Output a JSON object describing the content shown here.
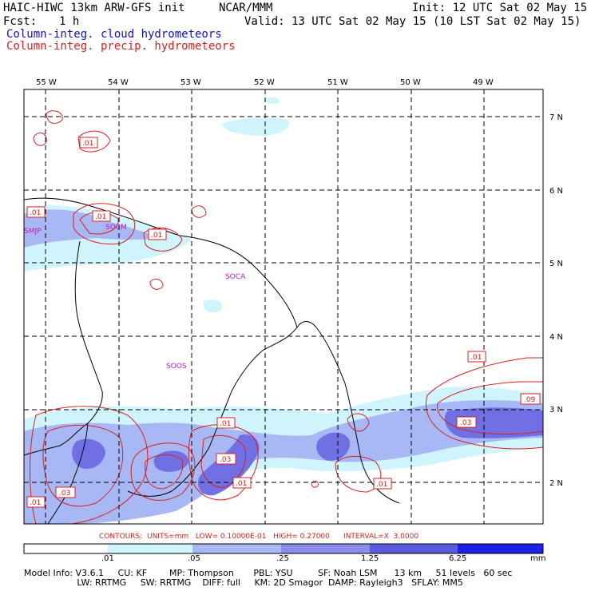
{
  "header": {
    "model": "HAIC-HIWC 13km ARW-GFS init",
    "org": "NCAR/MMM",
    "init": "Init: 12 UTC Sat 02 May 15",
    "fcst_label": "Fcst:",
    "fcst_value": "1 h",
    "valid": "Valid: 13 UTC Sat 02 May 15 (10 LST Sat 02 May 15)",
    "field1": "Column-integ. cloud hydrometeors",
    "field2": "Column-integ. precip. hydrometeors"
  },
  "map": {
    "lon_labels": [
      "55 W",
      "54 W",
      "53 W",
      "52 W",
      "51 W",
      "50 W",
      "49 W"
    ],
    "lat_labels": [
      "7 N",
      "6 N",
      "5 N",
      "4 N",
      "3 N",
      "2 N"
    ],
    "stations": [
      "SMJP",
      "SOCM",
      "SOCA",
      "SOOS"
    ],
    "contour_labels": [
      ".01",
      ".01",
      ".01",
      ".01",
      ".01",
      ".01",
      ".01",
      ".01",
      ".03",
      ".03",
      ".03",
      ".09",
      ".01",
      ".01"
    ]
  },
  "colors": {
    "cloud_shade_1": "#d0f4fc",
    "cloud_shade_2": "#a8b8f4",
    "cloud_shade_3": "#7070e4",
    "precip_contour": "#d82020",
    "station_text": "#c018c0",
    "cloud_field_text": "#1010c8"
  },
  "contours_line": {
    "text": "CONTOURS:  UNITS=mm   LOW= 0.10000E-01   HIGH= 0.27000      INTERVAL=X  3.0000"
  },
  "legend": {
    "ticks": [
      ".01",
      ".05",
      ".25",
      "1.25",
      "6.25"
    ],
    "unit": "mm",
    "colors": [
      "#ffffff",
      "#d0f4fc",
      "#a8b8f4",
      "#8c8cec",
      "#5a5ae0",
      "#2020e8"
    ]
  },
  "info": {
    "line1": "Model Info: V3.6.1     CU: KF        MP: Thompson       PBL: YSU         SF: Noah LSM      13 km     51 levels   60 sec",
    "line2": "                   LW: RRTMG     SW: RRTMG    DIFF: full     KM: 2D Smagor  DAMP: Rayleigh3   SFLAY: MM5"
  }
}
